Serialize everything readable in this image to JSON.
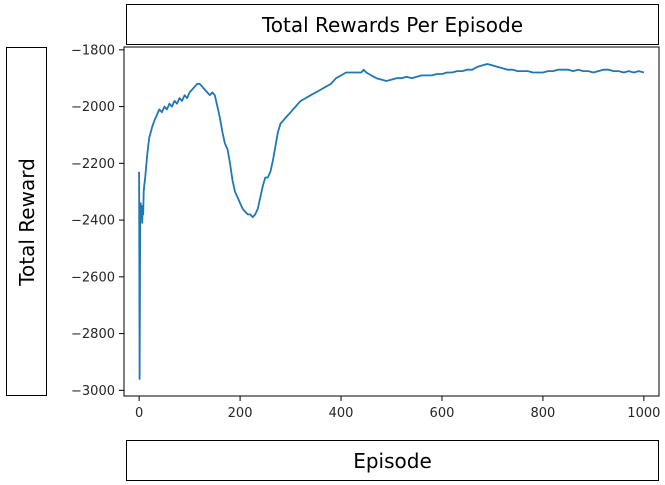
{
  "chart_data": {
    "type": "line",
    "title": "Total Rewards Per Episode",
    "xlabel": "Episode",
    "ylabel": "Total Reward",
    "xlim": [
      -30,
      1030
    ],
    "ylim": [
      -3020,
      -1790
    ],
    "xticks": [
      0,
      200,
      400,
      600,
      800,
      1000
    ],
    "yticks": [
      -1800,
      -2000,
      -2200,
      -2400,
      -2600,
      -2800,
      -3000
    ],
    "xtick_labels": [
      "0",
      "200",
      "400",
      "600",
      "800",
      "1000"
    ],
    "ytick_labels": [
      "−1800",
      "−2000",
      "−2200",
      "−2400",
      "−2600",
      "−2800",
      "−3000"
    ],
    "grid": false,
    "series": [
      {
        "color": "#1f77b4",
        "x": [
          0,
          1,
          2,
          3,
          4,
          5,
          6,
          7,
          8,
          9,
          10,
          12,
          14,
          16,
          18,
          20,
          23,
          26,
          30,
          35,
          40,
          45,
          50,
          55,
          60,
          65,
          70,
          75,
          80,
          85,
          90,
          95,
          100,
          105,
          110,
          115,
          120,
          125,
          130,
          135,
          140,
          145,
          150,
          155,
          160,
          165,
          170,
          175,
          180,
          185,
          190,
          195,
          200,
          205,
          210,
          215,
          220,
          225,
          230,
          235,
          240,
          245,
          250,
          255,
          260,
          265,
          270,
          275,
          280,
          285,
          290,
          295,
          300,
          305,
          310,
          315,
          320,
          325,
          330,
          335,
          340,
          350,
          360,
          370,
          380,
          390,
          400,
          410,
          420,
          430,
          440,
          445,
          450,
          460,
          470,
          480,
          490,
          500,
          510,
          520,
          530,
          540,
          550,
          560,
          570,
          580,
          590,
          600,
          610,
          620,
          630,
          640,
          650,
          660,
          670,
          680,
          690,
          700,
          710,
          720,
          730,
          740,
          750,
          760,
          770,
          780,
          790,
          800,
          810,
          820,
          830,
          840,
          850,
          860,
          870,
          880,
          890,
          900,
          910,
          920,
          930,
          940,
          950,
          960,
          970,
          980,
          990,
          1000
        ],
        "y": [
          -2230,
          -2960,
          -2400,
          -2340,
          -2390,
          -2350,
          -2410,
          -2360,
          -2380,
          -2300,
          -2280,
          -2250,
          -2210,
          -2170,
          -2140,
          -2110,
          -2090,
          -2070,
          -2050,
          -2030,
          -2010,
          -2020,
          -2000,
          -2010,
          -1990,
          -2000,
          -1980,
          -1990,
          -1970,
          -1980,
          -1960,
          -1970,
          -1950,
          -1940,
          -1930,
          -1920,
          -1920,
          -1930,
          -1940,
          -1950,
          -1960,
          -1950,
          -1960,
          -2000,
          -2040,
          -2090,
          -2130,
          -2150,
          -2200,
          -2260,
          -2300,
          -2320,
          -2340,
          -2360,
          -2370,
          -2380,
          -2380,
          -2390,
          -2380,
          -2360,
          -2320,
          -2280,
          -2250,
          -2250,
          -2230,
          -2190,
          -2140,
          -2090,
          -2060,
          -2050,
          -2040,
          -2030,
          -2020,
          -2010,
          -2000,
          -1990,
          -1980,
          -1975,
          -1970,
          -1965,
          -1960,
          -1950,
          -1940,
          -1930,
          -1920,
          -1900,
          -1890,
          -1880,
          -1880,
          -1880,
          -1880,
          -1870,
          -1880,
          -1890,
          -1900,
          -1905,
          -1910,
          -1905,
          -1900,
          -1900,
          -1895,
          -1900,
          -1895,
          -1890,
          -1890,
          -1890,
          -1885,
          -1885,
          -1880,
          -1880,
          -1875,
          -1875,
          -1870,
          -1870,
          -1860,
          -1855,
          -1850,
          -1855,
          -1860,
          -1865,
          -1870,
          -1870,
          -1875,
          -1875,
          -1875,
          -1880,
          -1880,
          -1880,
          -1875,
          -1875,
          -1870,
          -1870,
          -1870,
          -1875,
          -1870,
          -1875,
          -1875,
          -1880,
          -1875,
          -1870,
          -1870,
          -1875,
          -1875,
          -1880,
          -1875,
          -1880,
          -1875,
          -1880
        ]
      }
    ]
  }
}
